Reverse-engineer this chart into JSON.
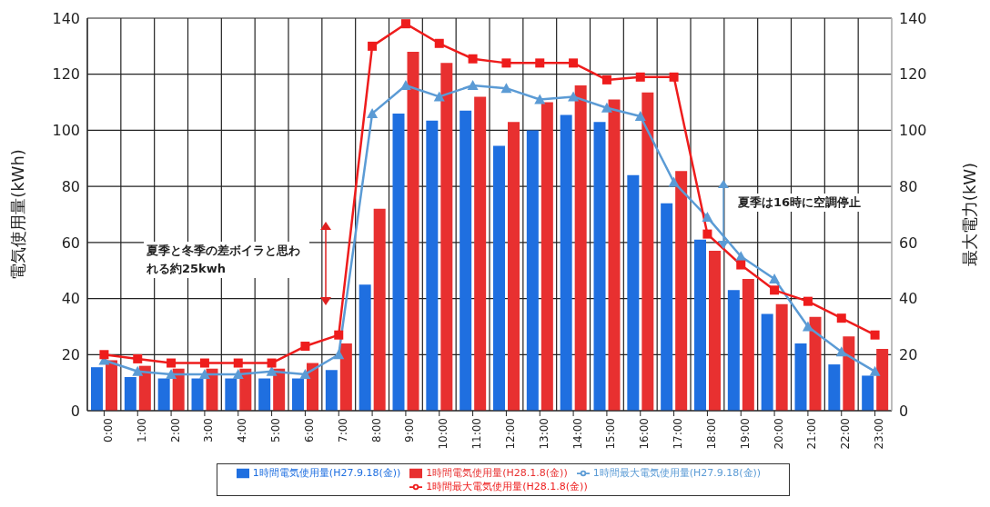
{
  "chart_data": {
    "type": "bar",
    "categories": [
      "0:00",
      "1:00",
      "2:00",
      "3:00",
      "4:00",
      "5:00",
      "6:00",
      "7:00",
      "8:00",
      "9:00",
      "10:00",
      "11:00",
      "12:00",
      "13:00",
      "14:00",
      "15:00",
      "16:00",
      "17:00",
      "18:00",
      "19:00",
      "20:00",
      "21:00",
      "22:00",
      "23:00"
    ],
    "ylabel": "電気使用量(kWh)",
    "y2label": "最大電力(kW)",
    "ylim": [
      0,
      140
    ],
    "yticks": [
      0,
      20,
      40,
      60,
      80,
      100,
      120,
      140
    ],
    "y2lim": [
      0,
      140
    ],
    "y2ticks": [
      0,
      20,
      40,
      60,
      80,
      100,
      120,
      140
    ],
    "grid": true,
    "legend": "bottom",
    "series": [
      {
        "name": "1時間電気使用量(H27.9.18(金))",
        "color": "#1f6fe0",
        "values": [
          15.5,
          12,
          11.5,
          11.5,
          11.5,
          11.5,
          11.5,
          14.5,
          45,
          106,
          103.5,
          107,
          94.5,
          100,
          105.5,
          103,
          84,
          74,
          61,
          43,
          34.5,
          24,
          16.5,
          12.5
        ]
      },
      {
        "name": "1時間電気使用量(H28.1.8(金))",
        "color": "#e83030",
        "values": [
          18,
          16,
          15,
          15,
          15,
          15,
          17,
          24,
          72,
          128,
          124,
          112,
          103,
          110,
          116,
          111,
          113.5,
          85.5,
          57,
          47,
          38,
          33.5,
          26.5,
          22
        ]
      },
      {
        "name": "1時間最大電気使用量(H27.9.18(金))",
        "type": "line",
        "axis": "y2",
        "marker": "triangle",
        "color": "#5b9bd5",
        "values": [
          18,
          14,
          13,
          13,
          13,
          14,
          13,
          20,
          106,
          116,
          112,
          116,
          115,
          111,
          112,
          108,
          105,
          81.5,
          69,
          55,
          47,
          30,
          21,
          14
        ]
      },
      {
        "name": "1時間最大電気使用量(H28.1.8(金))",
        "type": "line",
        "axis": "y2",
        "marker": "square",
        "color": "#ee1c1c",
        "values": [
          20,
          18.5,
          17,
          17,
          17,
          17,
          23,
          27,
          130,
          138,
          131,
          125.5,
          124,
          124,
          124,
          118,
          119,
          119,
          63,
          52,
          43,
          39,
          33,
          27
        ]
      }
    ],
    "annotations": [
      "夏季と冬季の差ボイラと思われる約25kwh",
      "夏季は16時に空調停止"
    ]
  }
}
